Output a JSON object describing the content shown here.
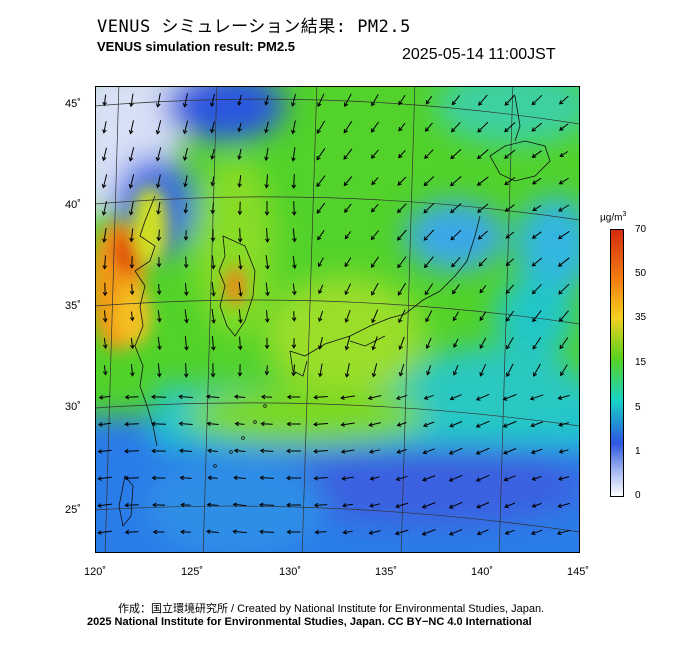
{
  "header": {
    "title_jp": "VENUS シミュレーション結果: PM2.5",
    "title_en": "VENUS simulation result: PM2.5",
    "timestamp": "2025-05-14 11:00JST"
  },
  "map": {
    "lon_labels": [
      "120˚",
      "125˚",
      "130˚",
      "135˚",
      "140˚",
      "145˚"
    ],
    "lat_labels": [
      "45˚",
      "40˚",
      "35˚",
      "30˚",
      "25˚"
    ],
    "lon_range": [
      120,
      145
    ],
    "lat_range": [
      23,
      46
    ]
  },
  "colorbar": {
    "unit": "µg/m",
    "unit_exp": "3",
    "labels": [
      "70",
      "50",
      "35",
      "15",
      "5",
      "1",
      "0"
    ],
    "colors": [
      "#d42a10",
      "#f07a10",
      "#f4d020",
      "#5ad21e",
      "#18d2c6",
      "#2c56e0",
      "#a0b4f0",
      "#ffffff"
    ]
  },
  "footer": {
    "credit_jp": "作成：国立環境研究所 / Created by National Institute for Environmental Studies, Japan.",
    "credit_en": "2025 National Institute for Environmental Studies, Japan. CC BY−NC 4.0 International"
  }
}
